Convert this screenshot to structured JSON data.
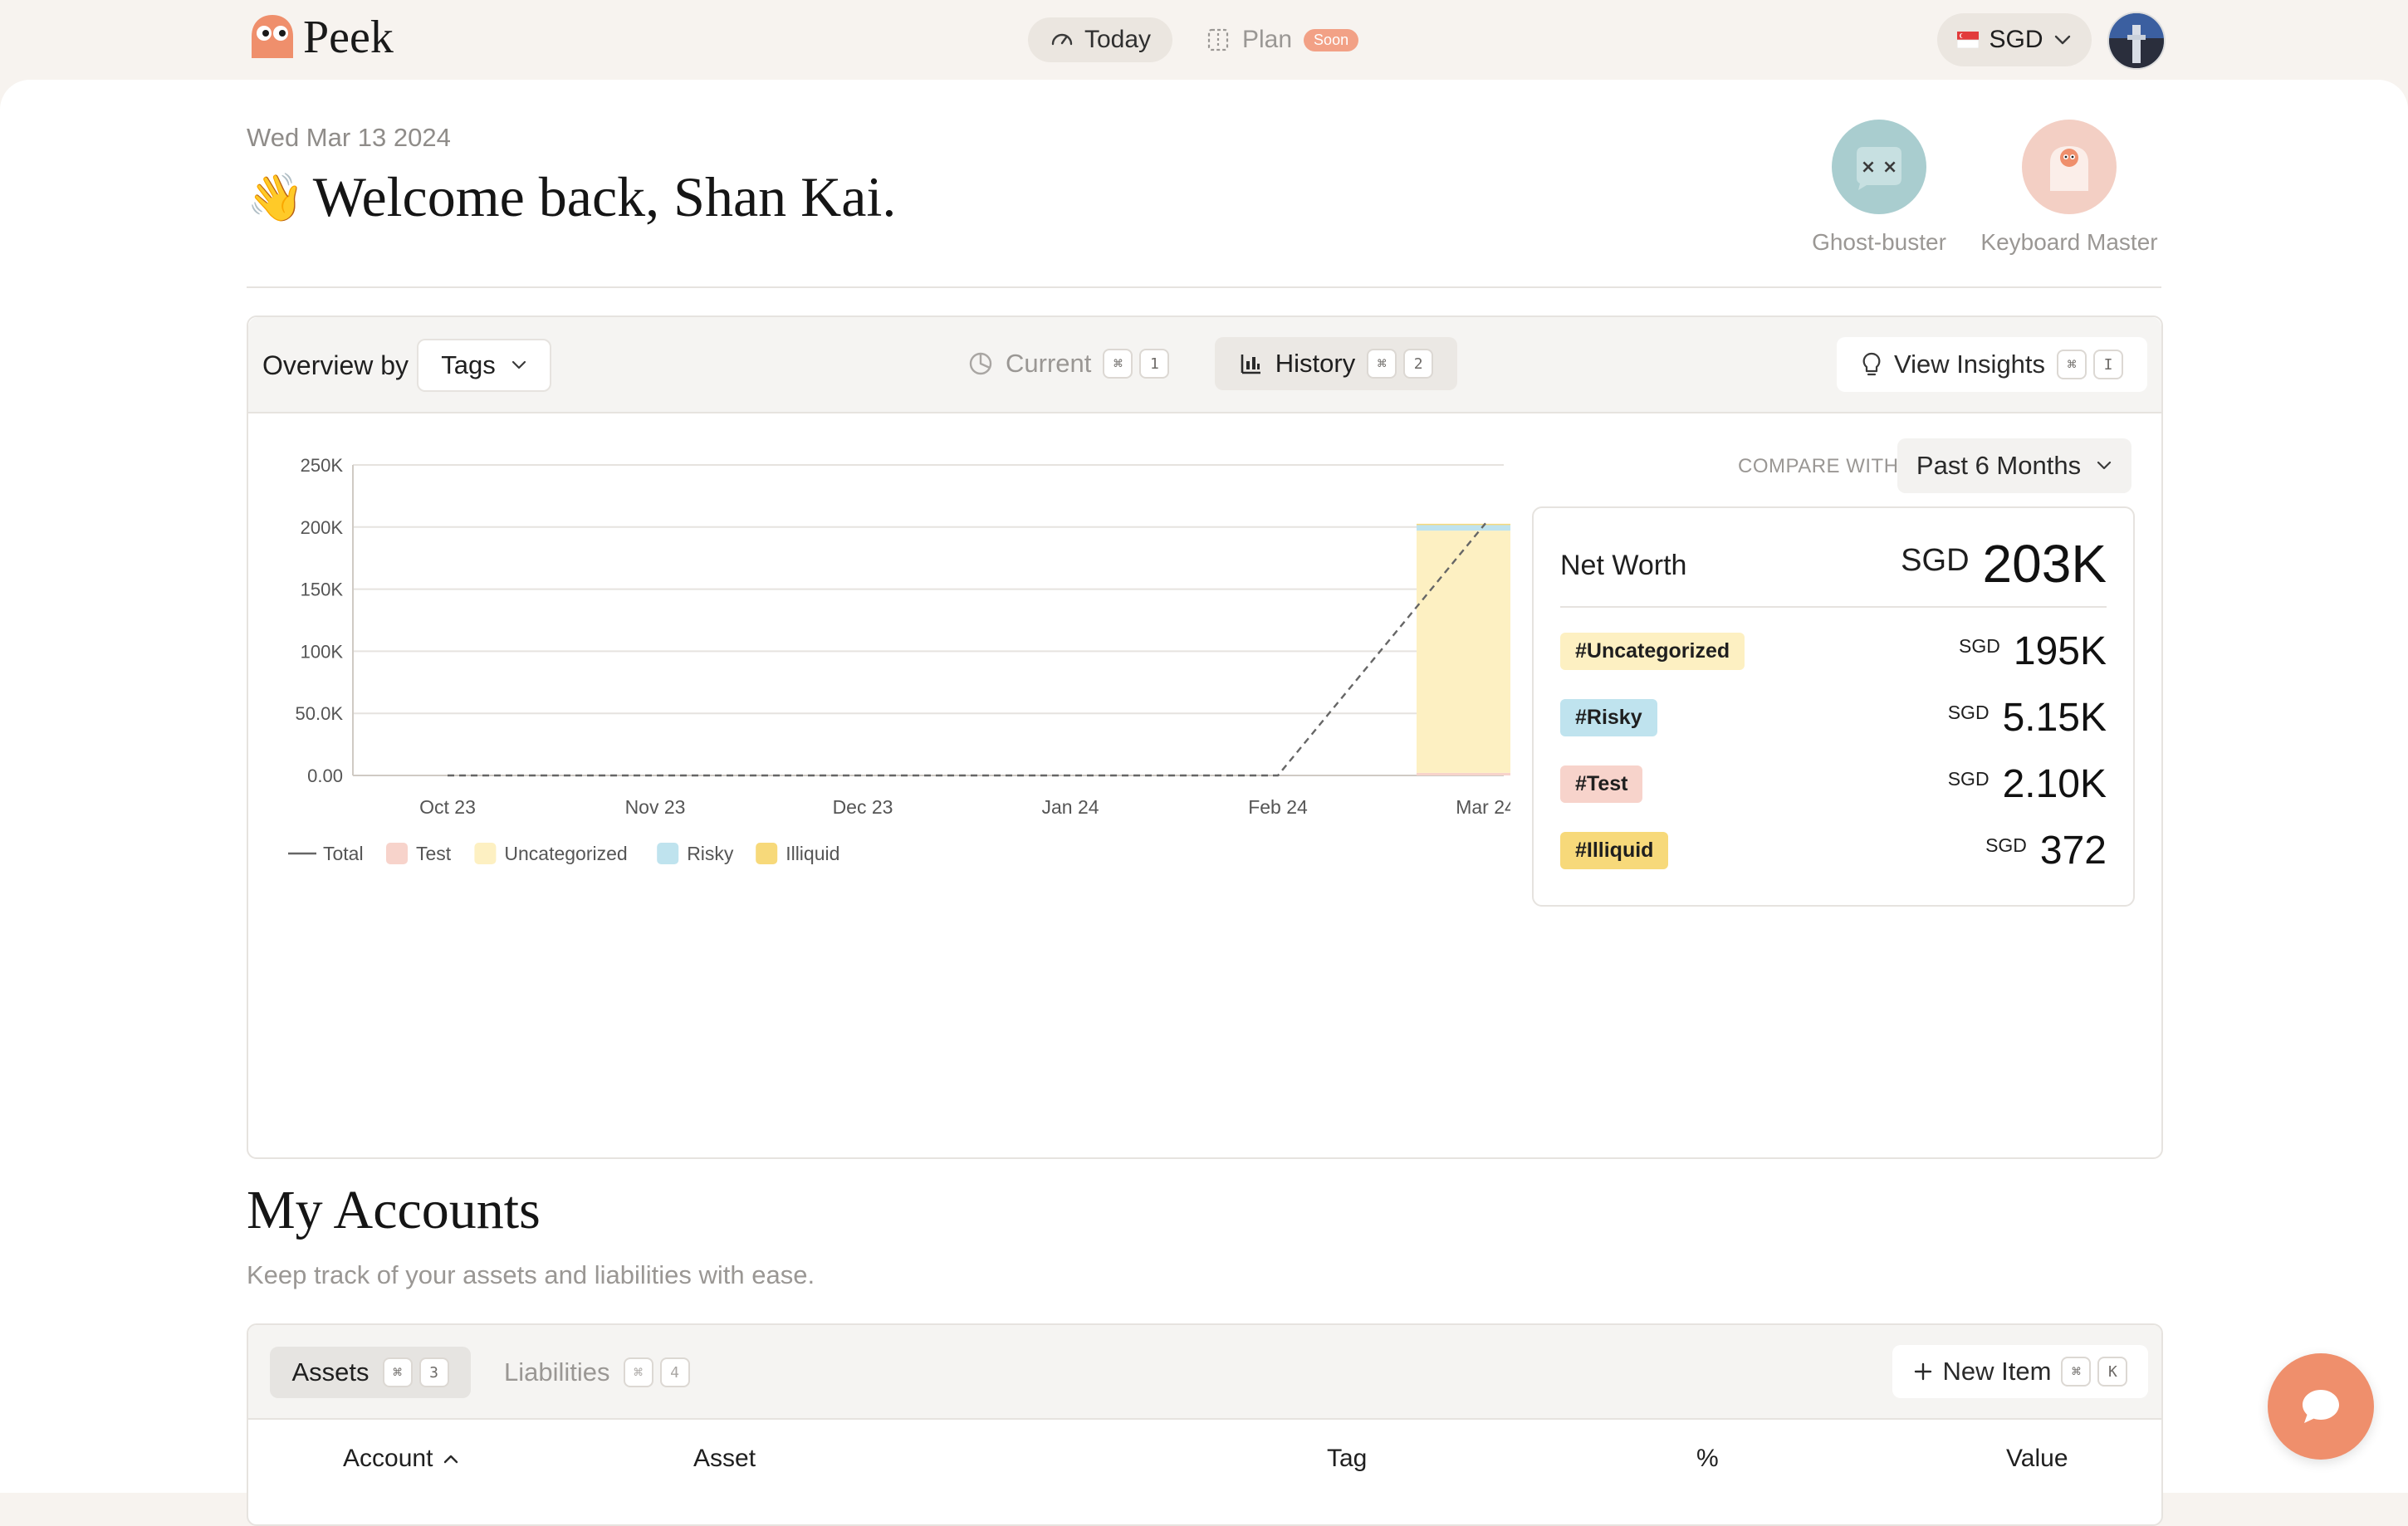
{
  "app": {
    "name": "Peek"
  },
  "nav": {
    "today_label": "Today",
    "plan_label": "Plan",
    "plan_badge": "Soon",
    "currency": "SGD"
  },
  "header": {
    "date": "Wed Mar 13 2024",
    "wave_emoji": "👋",
    "welcome": "Welcome back, Shan Kai."
  },
  "badges": [
    {
      "label": "Ghost-buster",
      "icon": "ghost-icon",
      "color": "#a9cdcf"
    },
    {
      "label": "Keyboard Master",
      "icon": "keyboard-ghost-icon",
      "color": "#f3cfc4"
    }
  ],
  "overview": {
    "by_label": "Overview by",
    "group_select": "Tags",
    "tab_current": {
      "label": "Current",
      "keys": [
        "⌘",
        "1"
      ]
    },
    "tab_history": {
      "label": "History",
      "keys": [
        "⌘",
        "2"
      ]
    },
    "insights": {
      "label": "View Insights",
      "keys": [
        "⌘",
        "I"
      ]
    },
    "compare_label": "COMPARE WITH",
    "compare_value": "Past 6 Months",
    "net_worth": {
      "label": "Net Worth",
      "currency": "SGD",
      "value": "203K",
      "tags": [
        {
          "tag": "#Uncategorized",
          "currency": "SGD",
          "value": "195K",
          "color": "#fdf0c2"
        },
        {
          "tag": "#Risky",
          "currency": "SGD",
          "value": "5.15K",
          "color": "#bfe3ee"
        },
        {
          "tag": "#Test",
          "currency": "SGD",
          "value": "2.10K",
          "color": "#f7d3cb"
        },
        {
          "tag": "#Illiquid",
          "currency": "SGD",
          "value": "372",
          "color": "#f7d97a"
        }
      ]
    }
  },
  "chart_data": {
    "type": "bar",
    "categories": [
      "Oct 23",
      "Nov 23",
      "Dec 23",
      "Jan 24",
      "Feb 24",
      "Mar 24"
    ],
    "y_ticks": [
      "250K",
      "200K",
      "150K",
      "100K",
      "50.0K",
      "0.00"
    ],
    "ylim": [
      0,
      250000
    ],
    "grid": true,
    "legend_position": "bottom-left",
    "series": [
      {
        "name": "Test",
        "color": "#f7d3cb",
        "values": [
          0,
          0,
          0,
          0,
          0,
          2100
        ]
      },
      {
        "name": "Uncategorized",
        "color": "#fdf0c2",
        "values": [
          0,
          0,
          0,
          0,
          0,
          195000
        ]
      },
      {
        "name": "Risky",
        "color": "#bfe3ee",
        "values": [
          0,
          0,
          0,
          0,
          0,
          5150
        ]
      },
      {
        "name": "Illiquid",
        "color": "#f7d97a",
        "values": [
          0,
          0,
          0,
          0,
          0,
          372
        ]
      }
    ],
    "line": {
      "name": "Total",
      "style": "dashed",
      "color": "#666666",
      "values": [
        0,
        0,
        0,
        0,
        0,
        203000
      ]
    }
  },
  "accounts": {
    "title": "My Accounts",
    "subtitle": "Keep track of your assets and liabilities with ease.",
    "tab_assets": {
      "label": "Assets",
      "keys": [
        "⌘",
        "3"
      ]
    },
    "tab_liabilities": {
      "label": "Liabilities",
      "keys": [
        "⌘",
        "4"
      ]
    },
    "new_item": {
      "label": "New Item",
      "keys": [
        "⌘",
        "K"
      ]
    },
    "columns": [
      "Account",
      "Asset",
      "Tag",
      "%",
      "Value"
    ]
  }
}
